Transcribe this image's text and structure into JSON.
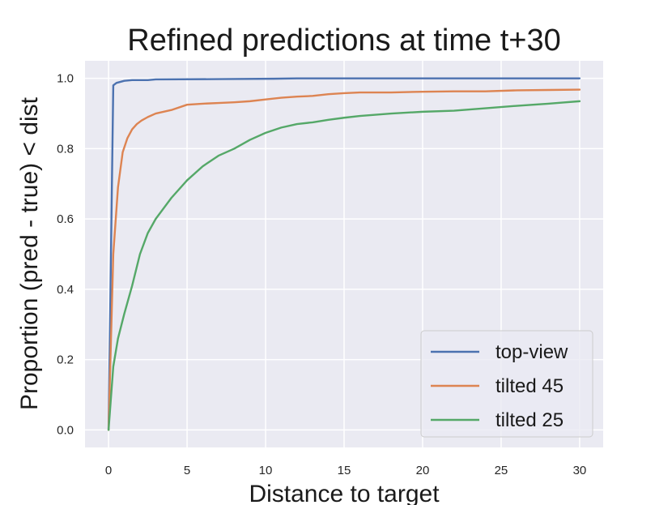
{
  "chart_data": {
    "type": "line",
    "title": "Refined predictions at time t+30",
    "xlabel": "Distance to target",
    "ylabel": "Proportion (pred - true) < dist",
    "xlim": [
      -1.5,
      31.5
    ],
    "ylim": [
      -0.05,
      1.05
    ],
    "xticks": [
      0,
      5,
      10,
      15,
      20,
      25,
      30
    ],
    "yticks": [
      0.0,
      0.2,
      0.4,
      0.6,
      0.8,
      1.0
    ],
    "xtick_labels": [
      "0",
      "5",
      "10",
      "15",
      "20",
      "25",
      "30"
    ],
    "ytick_labels": [
      "0.0",
      "0.2",
      "0.4",
      "0.6",
      "0.8",
      "1.0"
    ],
    "grid": true,
    "legend_position": "lower-right",
    "series": [
      {
        "name": "top-view",
        "color": "#4c72b0",
        "x": [
          0,
          0.3,
          0.5,
          1,
          1.5,
          2.5,
          3,
          7,
          10.5,
          12,
          30
        ],
        "y": [
          0.0,
          0.98,
          0.987,
          0.993,
          0.995,
          0.995,
          0.997,
          0.998,
          0.999,
          1.0,
          1.0
        ]
      },
      {
        "name": "tilted 45",
        "color": "#dd8452",
        "x": [
          0,
          0.3,
          0.6,
          0.9,
          1.2,
          1.5,
          1.8,
          2.1,
          2.5,
          3,
          4,
          5,
          6,
          7,
          8,
          9,
          10,
          11,
          12,
          13,
          14,
          15,
          16,
          18,
          20,
          22,
          24,
          26,
          28,
          30
        ],
        "y": [
          0.0,
          0.5,
          0.69,
          0.79,
          0.83,
          0.855,
          0.87,
          0.88,
          0.89,
          0.9,
          0.91,
          0.925,
          0.928,
          0.93,
          0.932,
          0.935,
          0.94,
          0.945,
          0.948,
          0.95,
          0.955,
          0.958,
          0.96,
          0.96,
          0.962,
          0.963,
          0.963,
          0.966,
          0.967,
          0.968
        ]
      },
      {
        "name": "tilted 25",
        "color": "#55a868",
        "x": [
          0,
          0.3,
          0.6,
          1,
          1.5,
          2,
          2.5,
          3,
          4,
          5,
          6,
          7,
          8,
          9,
          10,
          11,
          12,
          13,
          14,
          15,
          16,
          18,
          20,
          22,
          24,
          26,
          28,
          30
        ],
        "y": [
          0.0,
          0.18,
          0.26,
          0.33,
          0.41,
          0.5,
          0.56,
          0.6,
          0.66,
          0.71,
          0.75,
          0.78,
          0.8,
          0.825,
          0.845,
          0.86,
          0.87,
          0.875,
          0.882,
          0.888,
          0.893,
          0.9,
          0.905,
          0.908,
          0.915,
          0.922,
          0.928,
          0.935
        ]
      }
    ]
  }
}
